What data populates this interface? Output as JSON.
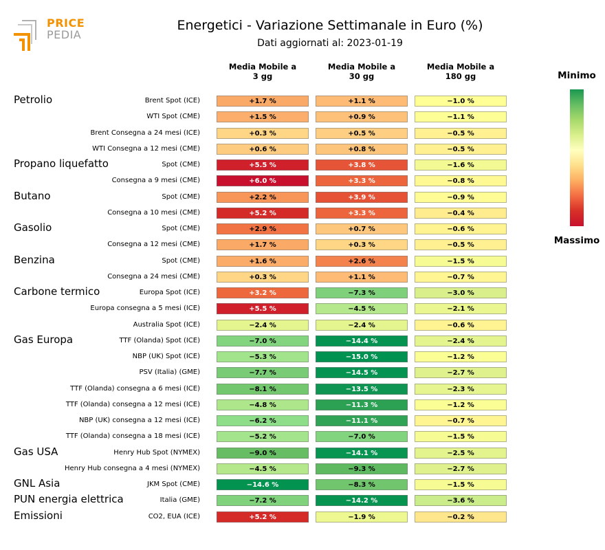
{
  "logo": {
    "top_text": "PRICE",
    "bottom_text": "PEDIA",
    "colors": {
      "orange": "#f39200",
      "gray": "#9a9a9a"
    }
  },
  "chart_data": {
    "type": "heatmap",
    "title": "Energetici - Variazione Settimanale in Euro (%)",
    "subtitle": "Dati aggiornati al: 2023-01-19",
    "columns": [
      {
        "line1": "Media Mobile a",
        "line2": "3 gg"
      },
      {
        "line1": "Media Mobile a",
        "line2": "30 gg"
      },
      {
        "line1": "Media Mobile a",
        "line2": "180 gg"
      }
    ],
    "color_scale": {
      "low_label": "Minimo",
      "high_label": "Massimo",
      "vmin": -15,
      "vmax": 6,
      "colors": [
        "#1a9850",
        "#ffffbf",
        "#c8102e"
      ]
    },
    "groups": [
      {
        "name": "Petrolio",
        "rows": [
          {
            "label": "Brent Spot (ICE)",
            "values": [
              1.7,
              1.1,
              -1.0
            ]
          },
          {
            "label": "WTI Spot (CME)",
            "values": [
              1.5,
              0.9,
              -1.1
            ]
          },
          {
            "label": "Brent Consegna a 24 mesi (ICE)",
            "values": [
              0.3,
              0.5,
              -0.5
            ]
          },
          {
            "label": "WTI Consegna a 12 mesi (CME)",
            "values": [
              0.6,
              0.8,
              -0.5
            ]
          }
        ]
      },
      {
        "name": "Propano liquefatto",
        "rows": [
          {
            "label": "Spot (CME)",
            "values": [
              5.5,
              3.8,
              -1.6
            ]
          },
          {
            "label": "Consegna a 9 mesi (CME)",
            "values": [
              6.0,
              3.3,
              -0.8
            ]
          }
        ]
      },
      {
        "name": "Butano",
        "rows": [
          {
            "label": "Spot (CME)",
            "values": [
              2.2,
              3.9,
              -0.9
            ]
          },
          {
            "label": "Consegna a 10 mesi (CME)",
            "values": [
              5.2,
              3.3,
              -0.4
            ]
          }
        ]
      },
      {
        "name": "Gasolio",
        "rows": [
          {
            "label": "Spot (CME)",
            "values": [
              2.9,
              0.7,
              -0.6
            ]
          },
          {
            "label": "Consegna a 12 mesi (CME)",
            "values": [
              1.7,
              0.3,
              -0.5
            ]
          }
        ]
      },
      {
        "name": "Benzina",
        "rows": [
          {
            "label": "Spot (CME)",
            "values": [
              1.6,
              2.6,
              -1.5
            ]
          },
          {
            "label": "Consegna a 24 mesi (CME)",
            "values": [
              0.3,
              1.1,
              -0.7
            ]
          }
        ]
      },
      {
        "name": "Carbone termico",
        "rows": [
          {
            "label": "Europa Spot (ICE)",
            "values": [
              3.2,
              -7.3,
              -3.0
            ]
          },
          {
            "label": "Europa consegna a 5 mesi (ICE)",
            "values": [
              5.5,
              -4.5,
              -2.1
            ]
          },
          {
            "label": "Australia Spot (ICE)",
            "values": [
              -2.4,
              -2.4,
              -0.6
            ]
          }
        ]
      },
      {
        "name": "Gas Europa",
        "rows": [
          {
            "label": "TTF (Olanda) Spot (ICE)",
            "values": [
              -7.0,
              -14.4,
              -2.4
            ]
          },
          {
            "label": "NBP (UK) Spot (ICE)",
            "values": [
              -5.3,
              -15.0,
              -1.2
            ]
          },
          {
            "label": "PSV (Italia) (GME)",
            "values": [
              -7.7,
              -14.5,
              -2.7
            ]
          },
          {
            "label": "TTF (Olanda) consegna a 6 mesi (ICE)",
            "values": [
              -8.1,
              -13.5,
              -2.3
            ]
          },
          {
            "label": "TTF (Olanda) consegna a 12 mesi (ICE)",
            "values": [
              -4.8,
              -11.3,
              -1.2
            ]
          },
          {
            "label": "NBP (UK) consegna a 12 mesi (ICE)",
            "values": [
              -6.2,
              -11.1,
              -0.7
            ]
          },
          {
            "label": "TTF (Olanda) consegna a 18 mesi (ICE)",
            "values": [
              -5.2,
              -7.0,
              -1.5
            ]
          }
        ]
      },
      {
        "name": "Gas USA",
        "rows": [
          {
            "label": "Henry Hub Spot (NYMEX)",
            "values": [
              -9.0,
              -14.1,
              -2.5
            ]
          },
          {
            "label": "Henry Hub consegna a 4 mesi (NYMEX)",
            "values": [
              -4.5,
              -9.3,
              -2.7
            ]
          }
        ]
      },
      {
        "name": "GNL Asia",
        "rows": [
          {
            "label": "JKM Spot (CME)",
            "values": [
              -14.6,
              -8.3,
              -1.5
            ]
          }
        ]
      },
      {
        "name": "PUN energia elettrica",
        "rows": [
          {
            "label": "Italia (GME)",
            "values": [
              -7.2,
              -14.2,
              -3.6
            ]
          }
        ]
      },
      {
        "name": "Emissioni",
        "rows": [
          {
            "label": "CO2, EUA (ICE)",
            "values": [
              5.2,
              -1.9,
              -0.2
            ]
          }
        ]
      }
    ]
  }
}
